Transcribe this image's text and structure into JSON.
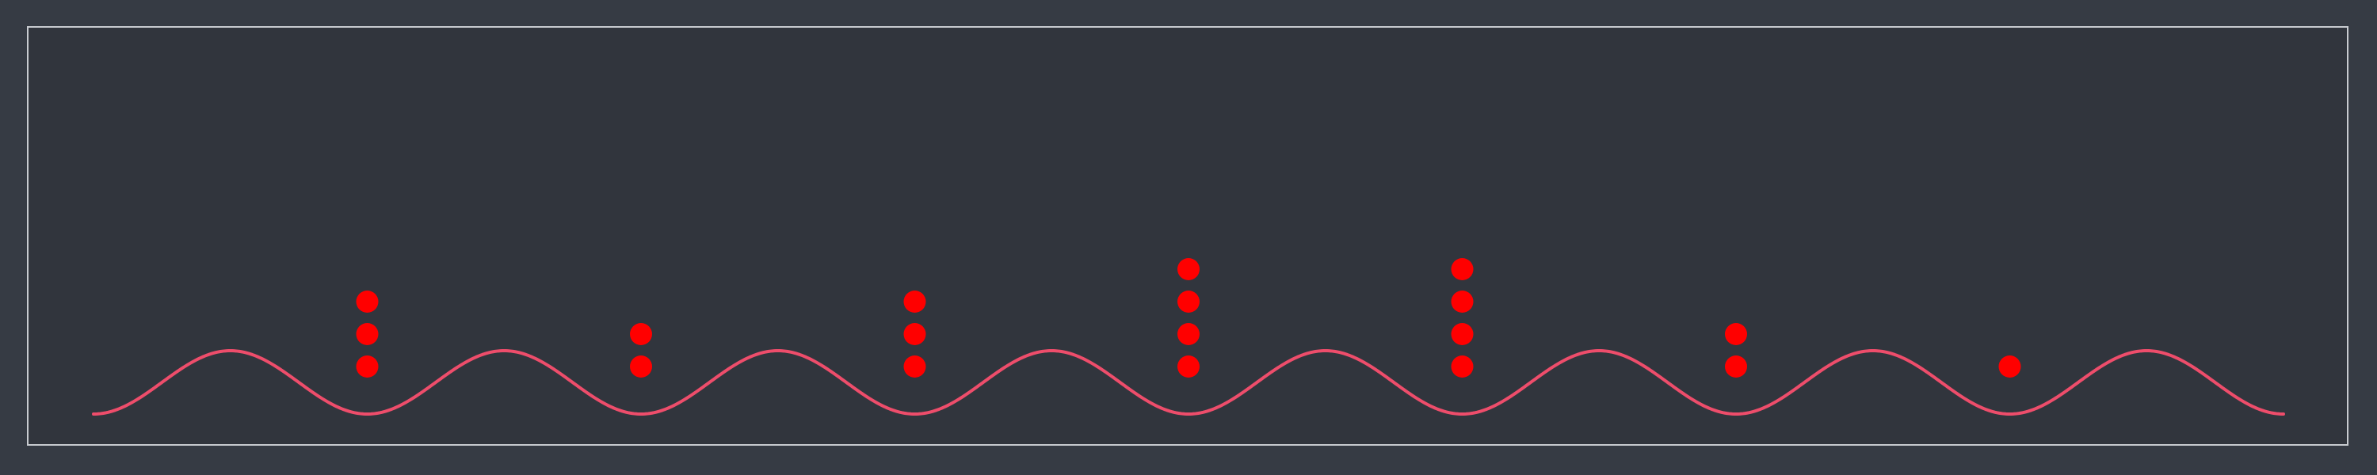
{
  "colors": {
    "background": "#363b44",
    "panel": "#31353d",
    "border": "#c8cbd0",
    "wave": "#ee4d6b",
    "dots": "#ff0000"
  },
  "wave": {
    "cycles": 8,
    "dip_count": 9
  },
  "dot_counts": [
    3,
    2,
    3,
    4,
    4,
    2,
    1
  ]
}
